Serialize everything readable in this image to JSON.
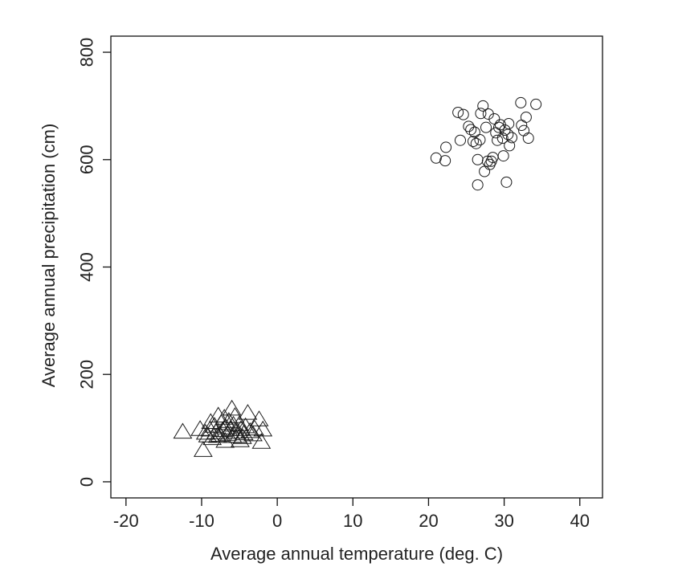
{
  "chart_data": {
    "type": "scatter",
    "title": "",
    "xlabel": "Average annual temperature (deg. C)",
    "ylabel": "Average annual precipitation (cm)",
    "xlim": [
      -22,
      43
    ],
    "ylim": [
      -30,
      830
    ],
    "xticks": [
      -20,
      -10,
      0,
      10,
      20,
      30,
      40
    ],
    "yticks": [
      0,
      200,
      400,
      600,
      800
    ],
    "xtick_labels": [
      "-20",
      "-10",
      "0",
      "10",
      "20",
      "30",
      "40"
    ],
    "ytick_labels": [
      "0",
      "200",
      "400",
      "600",
      "800"
    ],
    "grid": false,
    "legend": "none",
    "marker_color": "#1a1a1a",
    "series": [
      {
        "marker": "triangle",
        "points": [
          [
            -12.5,
            92
          ],
          [
            -10.2,
            97
          ],
          [
            -9.8,
            58
          ],
          [
            -9.5,
            90
          ],
          [
            -9.2,
            85
          ],
          [
            -8.9,
            96
          ],
          [
            -8.6,
            80
          ],
          [
            -8.3,
            103
          ],
          [
            -8.1,
            91
          ],
          [
            -7.8,
            122
          ],
          [
            -7.6,
            86
          ],
          [
            -7.4,
            108
          ],
          [
            -7.2,
            95
          ],
          [
            -7.0,
            118
          ],
          [
            -6.8,
            100
          ],
          [
            -6.6,
            88
          ],
          [
            -6.4,
            112
          ],
          [
            -6.2,
            97
          ],
          [
            -6.0,
            135
          ],
          [
            -5.8,
            105
          ],
          [
            -5.6,
            121
          ],
          [
            -5.4,
            92
          ],
          [
            -5.2,
            84
          ],
          [
            -5.0,
            106
          ],
          [
            -4.8,
            97
          ],
          [
            -4.6,
            82
          ],
          [
            -4.4,
            89
          ],
          [
            -4.2,
            102
          ],
          [
            -3.9,
            127
          ],
          [
            -3.6,
            93
          ],
          [
            -3.2,
            87
          ],
          [
            -3.0,
            98
          ],
          [
            -2.4,
            115
          ],
          [
            -2.1,
            73
          ],
          [
            -1.9,
            96
          ],
          [
            -8.8,
            110
          ],
          [
            -7.9,
            84
          ],
          [
            -6.9,
            75
          ],
          [
            -5.9,
            84
          ],
          [
            -4.9,
            76
          ]
        ]
      },
      {
        "marker": "circle",
        "points": [
          [
            21.0,
            603
          ],
          [
            22.2,
            598
          ],
          [
            22.3,
            623
          ],
          [
            23.9,
            688
          ],
          [
            24.2,
            636
          ],
          [
            24.6,
            684
          ],
          [
            25.3,
            662
          ],
          [
            25.6,
            656
          ],
          [
            25.9,
            634
          ],
          [
            26.1,
            651
          ],
          [
            26.3,
            630
          ],
          [
            26.5,
            600
          ],
          [
            26.5,
            553
          ],
          [
            26.8,
            637
          ],
          [
            26.9,
            686
          ],
          [
            27.2,
            700
          ],
          [
            27.4,
            578
          ],
          [
            27.6,
            660
          ],
          [
            27.8,
            597
          ],
          [
            27.9,
            685
          ],
          [
            28.1,
            591
          ],
          [
            28.3,
            597
          ],
          [
            28.5,
            604
          ],
          [
            28.7,
            676
          ],
          [
            28.9,
            650
          ],
          [
            29.1,
            636
          ],
          [
            29.3,
            660
          ],
          [
            29.5,
            665
          ],
          [
            29.8,
            640
          ],
          [
            29.9,
            607
          ],
          [
            30.1,
            655
          ],
          [
            30.3,
            558
          ],
          [
            30.5,
            647
          ],
          [
            30.6,
            667
          ],
          [
            30.7,
            626
          ],
          [
            31.0,
            641
          ],
          [
            32.2,
            706
          ],
          [
            32.3,
            664
          ],
          [
            32.6,
            654
          ],
          [
            32.9,
            679
          ],
          [
            33.2,
            640
          ],
          [
            34.2,
            703
          ]
        ]
      }
    ]
  }
}
